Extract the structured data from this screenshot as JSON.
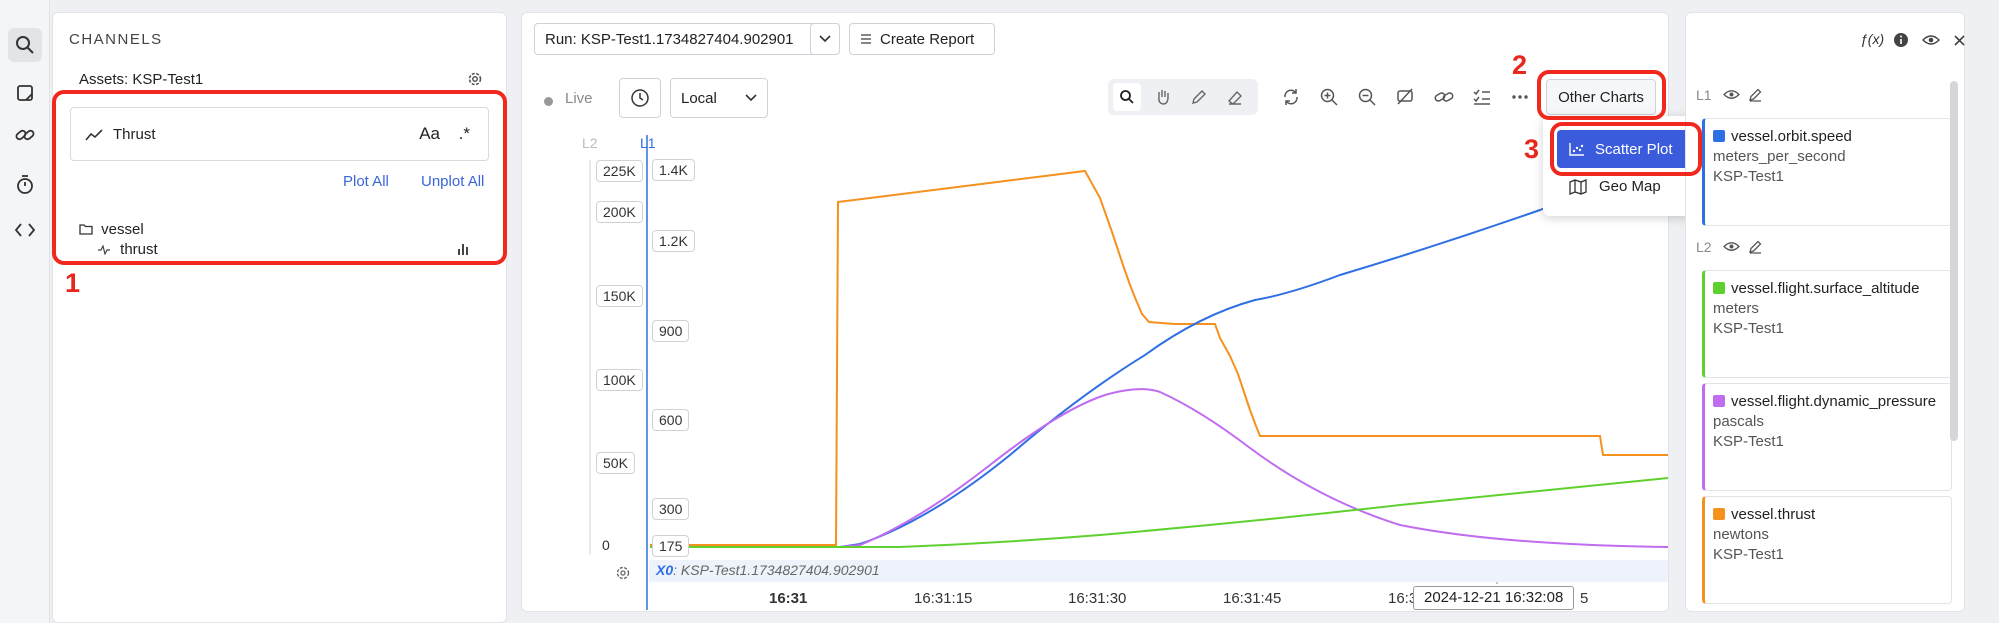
{
  "channels": {
    "title": "CHANNELS",
    "assets_label": "Assets: KSP-Test1",
    "search": {
      "value": "Thrust",
      "case_toggle": "Aa",
      "regex_toggle": ".*"
    },
    "plot_all": "Plot All",
    "unplot_all": "Unplot All",
    "tree": {
      "folder": "vessel",
      "leaf": "thrust"
    }
  },
  "toolbar": {
    "run_label": "Run: KSP-Test1.1734827404.902901",
    "create_report": "Create Report",
    "live": "Live",
    "timezone": "Local",
    "other_charts": "Other Charts",
    "menu": {
      "scatter_plot": "Scatter Plot",
      "geo_map": "Geo Map"
    }
  },
  "chart": {
    "axis_l2_label": "L2",
    "axis_l1_label": "L1",
    "l2_ticks": [
      "225K",
      "200K",
      "150K",
      "100K",
      "50K",
      "0"
    ],
    "l1_ticks": [
      "1.4K",
      "1.2K",
      "900",
      "600",
      "300",
      "175"
    ],
    "x_ticks": [
      "16:31",
      "16:31:15",
      "16:31:30",
      "16:31:45",
      "16:3",
      "5"
    ],
    "x_axis_note_prefix": "X0",
    "x_axis_note": ": KSP-Test1.1734827404.902901",
    "cursor_time": "2024-12-21 16:32:08"
  },
  "colors": {
    "blue": "#2f6fe4",
    "green": "#5fd12e",
    "purple": "#c06cf0",
    "orange": "#f5911e",
    "accent": "#3a5bdc",
    "annotation": "#f0281e"
  },
  "legend": {
    "l1_label": "L1",
    "l2_label": "L2",
    "items": [
      {
        "name": "vessel.orbit.speed",
        "unit": "meters_per_second",
        "asset": "KSP-Test1"
      },
      {
        "name": "vessel.flight.surface_altitude",
        "unit": "meters",
        "asset": "KSP-Test1"
      },
      {
        "name": "vessel.flight.dynamic_pressure",
        "unit": "pascals",
        "asset": "KSP-Test1"
      },
      {
        "name": "vessel.thrust",
        "unit": "newtons",
        "asset": "KSP-Test1"
      }
    ]
  },
  "annotations": [
    "1",
    "2",
    "3"
  ]
}
